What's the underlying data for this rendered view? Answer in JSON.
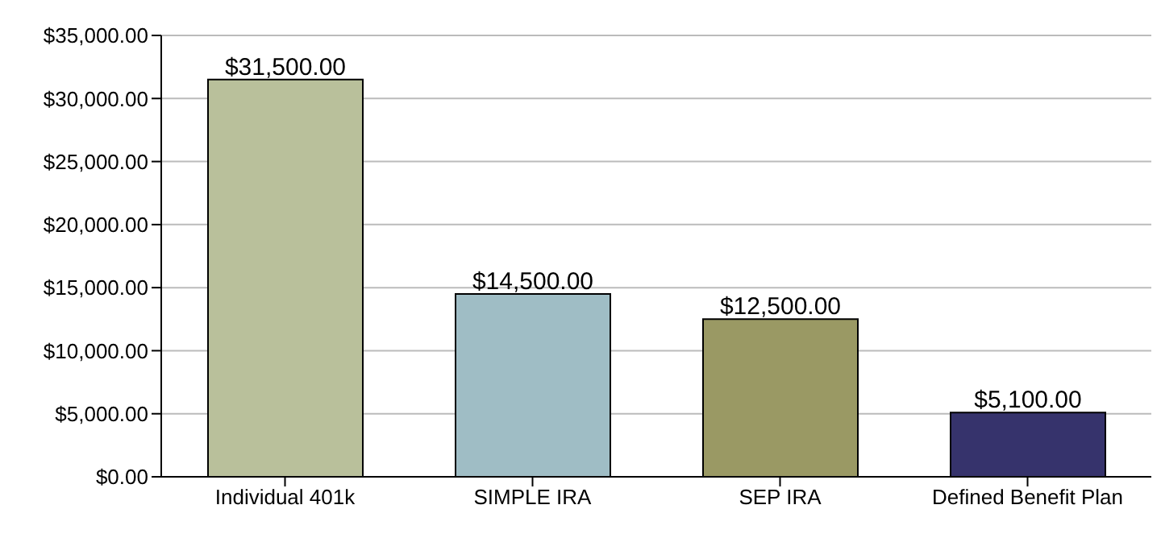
{
  "chart_data": {
    "type": "bar",
    "categories": [
      "Individual 401k",
      "SIMPLE IRA",
      "SEP IRA",
      "Defined Benefit Plan"
    ],
    "values": [
      31500,
      14500,
      12500,
      5100
    ],
    "colors": [
      "#b9c09b",
      "#9fbdc5",
      "#9a9964",
      "#36336c"
    ],
    "value_labels": [
      "$31,500.00",
      "$14,500.00",
      "$12,500.00",
      "$5,100.00"
    ],
    "ylim": [
      0,
      35000
    ],
    "yticks": [
      {
        "value": 0,
        "label": "$0.00"
      },
      {
        "value": 5000,
        "label": "$5,000.00"
      },
      {
        "value": 10000,
        "label": "$10,000.00"
      },
      {
        "value": 15000,
        "label": "$15,000.00"
      },
      {
        "value": 20000,
        "label": "$20,000.00"
      },
      {
        "value": 25000,
        "label": "$25,000.00"
      },
      {
        "value": 30000,
        "label": "$30,000.00"
      },
      {
        "value": 35000,
        "label": "$35,000.00"
      }
    ],
    "grid": "y"
  }
}
